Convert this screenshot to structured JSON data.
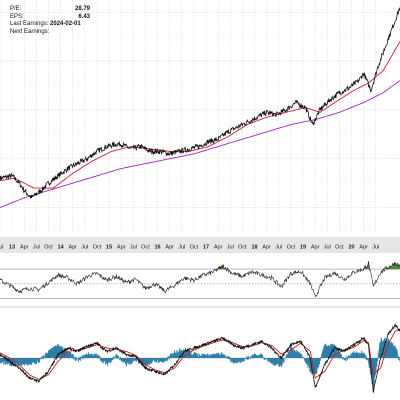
{
  "info": {
    "pe_label": "P/E:",
    "pe_value": "28.79",
    "eps_label": "EPS:",
    "eps_value": "6.43",
    "last_earnings_label": "Last Earnings:",
    "last_earnings_value": "2024-02-01",
    "next_earnings_label": "Next Earnings:",
    "next_earnings_value": ""
  },
  "x_ticks": [
    "Jul",
    "13",
    "Apr",
    "Jul",
    "Oct",
    "14",
    "Apr",
    "Jul",
    "Oct",
    "15",
    "Apr",
    "Jul",
    "Oct",
    "16",
    "Apr",
    "Jul",
    "Oct",
    "17",
    "Apr",
    "Jul",
    "Oct",
    "18",
    "Apr",
    "Jul",
    "Oct",
    "19",
    "Apr",
    "Jul",
    "Oct",
    "20",
    "Apr",
    "Jul"
  ],
  "colors": {
    "price": "#111111",
    "ma_short": "#c81e32",
    "ma_long": "#a020c8",
    "rsi_fill": "#4c8a3c",
    "macd_line": "#111111",
    "macd_signal": "#c81e1e",
    "histogram": "#2f7fa8",
    "grid": "#cfcfcf",
    "axis_band": "#e6e6e6"
  },
  "chart_data": [
    {
      "type": "line",
      "panel": "price",
      "x_range": [
        2012.5,
        2020.75
      ],
      "y_range": [
        40,
        135
      ],
      "log_scale": false,
      "grid": true,
      "series": [
        {
          "role": "price",
          "x": [
            2012.5,
            2012.75,
            2012.9,
            2013.0,
            2013.15,
            2013.35,
            2013.5,
            2013.7,
            2013.9,
            2014.1,
            2014.3,
            2014.5,
            2014.7,
            2014.9,
            2015.0,
            2015.2,
            2015.4,
            2015.6,
            2015.8,
            2016.0,
            2016.2,
            2016.4,
            2016.6,
            2016.8,
            2017.0,
            2017.2,
            2017.4,
            2017.6,
            2017.8,
            2018.0,
            2018.2,
            2018.4,
            2018.6,
            2018.8,
            2018.95,
            2019.1,
            2019.3,
            2019.5,
            2019.7,
            2019.9,
            2020.0,
            2020.15,
            2020.3,
            2020.45,
            2020.6,
            2020.75
          ],
          "y": [
            62,
            63,
            60,
            57,
            54,
            57,
            60,
            63,
            66,
            68,
            70,
            73,
            75,
            76,
            76,
            74,
            75,
            73,
            73,
            72,
            73,
            74,
            75,
            77,
            78,
            81,
            83,
            85,
            87,
            89,
            88,
            90,
            93,
            91,
            84,
            90,
            94,
            97,
            99,
            102,
            105,
            98,
            108,
            116,
            124,
            132
          ]
        },
        {
          "role": "ma_short",
          "x": [
            2012.5,
            2012.8,
            2013.2,
            2013.6,
            2014.0,
            2014.4,
            2014.8,
            2015.2,
            2015.6,
            2016.0,
            2016.4,
            2016.8,
            2017.2,
            2017.6,
            2018.0,
            2018.4,
            2018.8,
            2019.1,
            2019.4,
            2019.8,
            2020.1,
            2020.4,
            2020.75
          ],
          "y": [
            61,
            62,
            58,
            58,
            64,
            69,
            73,
            75,
            74,
            73,
            73,
            75,
            79,
            84,
            87,
            89,
            91,
            89,
            93,
            98,
            101,
            106,
            118
          ]
        },
        {
          "role": "ma_long",
          "x": [
            2012.5,
            2013.0,
            2013.5,
            2014.0,
            2014.5,
            2015.0,
            2015.5,
            2016.0,
            2016.5,
            2017.0,
            2017.5,
            2018.0,
            2018.5,
            2019.0,
            2019.5,
            2020.0,
            2020.4,
            2020.75
          ],
          "y": [
            50,
            54,
            57,
            60,
            63,
            66,
            68,
            70,
            72,
            75,
            78,
            81,
            84,
            86,
            89,
            93,
            97,
            102
          ]
        }
      ]
    },
    {
      "type": "line",
      "panel": "rsi",
      "y_range": [
        20,
        85
      ],
      "reference_lines": [
        30,
        50,
        70
      ],
      "fill_above": 70,
      "x": [
        2012.5,
        2012.7,
        2012.9,
        2013.1,
        2013.3,
        2013.5,
        2013.7,
        2013.9,
        2014.1,
        2014.3,
        2014.5,
        2014.7,
        2014.9,
        2015.1,
        2015.3,
        2015.5,
        2015.7,
        2015.9,
        2016.1,
        2016.3,
        2016.5,
        2016.7,
        2016.9,
        2017.1,
        2017.3,
        2017.5,
        2017.7,
        2017.9,
        2018.1,
        2018.3,
        2018.5,
        2018.7,
        2018.9,
        2019.0,
        2019.2,
        2019.4,
        2019.6,
        2019.8,
        2020.0,
        2020.1,
        2020.2,
        2020.35,
        2020.5,
        2020.65,
        2020.75
      ],
      "y": [
        55,
        48,
        40,
        44,
        42,
        52,
        62,
        58,
        50,
        60,
        64,
        55,
        60,
        52,
        56,
        44,
        50,
        40,
        48,
        58,
        55,
        62,
        66,
        74,
        64,
        60,
        66,
        62,
        58,
        46,
        64,
        67,
        50,
        32,
        58,
        65,
        56,
        66,
        70,
        78,
        46,
        66,
        72,
        78,
        74
      ]
    },
    {
      "type": "line",
      "panel": "macd",
      "y_range": [
        -6,
        6
      ],
      "x": [
        2012.5,
        2012.7,
        2012.9,
        2013.1,
        2013.3,
        2013.5,
        2013.7,
        2013.9,
        2014.1,
        2014.3,
        2014.5,
        2014.7,
        2014.9,
        2015.1,
        2015.3,
        2015.5,
        2015.7,
        2015.9,
        2016.1,
        2016.3,
        2016.5,
        2016.7,
        2016.9,
        2017.1,
        2017.3,
        2017.5,
        2017.7,
        2017.9,
        2018.1,
        2018.3,
        2018.5,
        2018.7,
        2018.9,
        2019.0,
        2019.2,
        2019.4,
        2019.6,
        2019.8,
        2020.0,
        2020.1,
        2020.2,
        2020.35,
        2020.5,
        2020.65,
        2020.75
      ],
      "series": [
        {
          "role": "macd",
          "y": [
            0.5,
            -0.5,
            -1.5,
            -3.0,
            -3.5,
            -2.0,
            0.5,
            1.5,
            1.0,
            1.8,
            2.2,
            1.0,
            1.5,
            0.5,
            0.2,
            -1.5,
            -2.0,
            -2.5,
            -1.0,
            1.0,
            1.5,
            2.0,
            2.5,
            3.0,
            2.0,
            1.5,
            2.0,
            2.5,
            1.5,
            0.0,
            2.0,
            2.5,
            0.0,
            -4.5,
            -1.0,
            1.5,
            1.0,
            2.0,
            3.0,
            2.0,
            -5.0,
            0.0,
            3.5,
            5.0,
            4.0
          ]
        },
        {
          "role": "signal",
          "y": [
            0.8,
            0.0,
            -1.0,
            -2.5,
            -3.2,
            -2.5,
            -0.5,
            1.0,
            1.2,
            1.5,
            2.0,
            1.5,
            1.3,
            1.0,
            0.4,
            -1.0,
            -1.8,
            -2.2,
            -1.5,
            0.3,
            1.2,
            1.8,
            2.3,
            2.7,
            2.3,
            1.7,
            1.8,
            2.3,
            1.9,
            0.6,
            1.2,
            2.2,
            1.0,
            -3.0,
            -2.0,
            0.5,
            1.2,
            1.6,
            2.6,
            2.3,
            -2.5,
            -1.5,
            2.0,
            4.0,
            4.3
          ]
        }
      ]
    }
  ]
}
